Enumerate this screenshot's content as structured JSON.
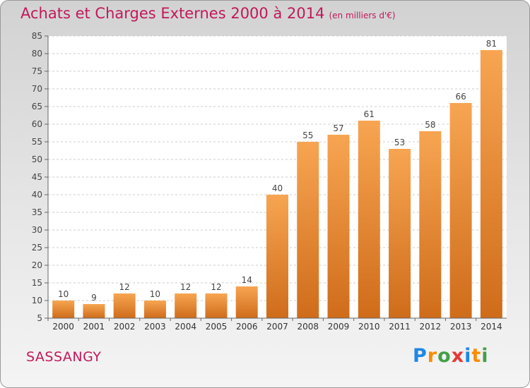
{
  "header": {
    "title": "Achats et Charges Externes 2000 à 2014",
    "unit": "(en milliers d'€)"
  },
  "footer": {
    "place": "SASSANGY",
    "brand": "Proxiti",
    "brand_letters": [
      {
        "ch": "P",
        "color": "#1e88e5"
      },
      {
        "ch": "r",
        "color": "#fb8c00"
      },
      {
        "ch": "o",
        "color": "#43a047"
      },
      {
        "ch": "x",
        "color": "#e53935"
      },
      {
        "ch": "i",
        "color": "#1e88e5"
      },
      {
        "ch": "t",
        "color": "#fb8c00"
      },
      {
        "ch": "i",
        "color": "#43a047"
      }
    ]
  },
  "colors": {
    "bar_light": "#f7a552",
    "bar_dark": "#cf6c1a",
    "title": "#c2185b",
    "plot_bg": "#ffffff",
    "grid": "#cccccc"
  },
  "chart_data": {
    "type": "bar",
    "title": "Achats et Charges Externes 2000 à 2014",
    "subtitle": "(en milliers d'€)",
    "xlabel": "",
    "ylabel": "",
    "categories": [
      "2000",
      "2001",
      "2002",
      "2003",
      "2004",
      "2005",
      "2006",
      "2007",
      "2008",
      "2009",
      "2010",
      "2011",
      "2012",
      "2013",
      "2014"
    ],
    "values": [
      10,
      9,
      12,
      10,
      12,
      12,
      14,
      40,
      55,
      57,
      61,
      53,
      58,
      66,
      81
    ],
    "data_labels": [
      "10",
      "9",
      "12",
      "10",
      "12",
      "12",
      "14",
      "40",
      "55",
      "57",
      "61",
      "53",
      "58",
      "66",
      "81"
    ],
    "ylim": [
      5,
      85
    ],
    "yticks": [
      5,
      10,
      15,
      20,
      25,
      30,
      35,
      40,
      45,
      50,
      55,
      60,
      65,
      70,
      75,
      80,
      85
    ],
    "ytick_labels": [
      "5",
      "10",
      "15",
      "20",
      "25",
      "30",
      "35",
      "40",
      "45",
      "50",
      "55",
      "60",
      "65",
      "70",
      "75",
      "80",
      "85"
    ],
    "grid": true,
    "legend": "none"
  }
}
